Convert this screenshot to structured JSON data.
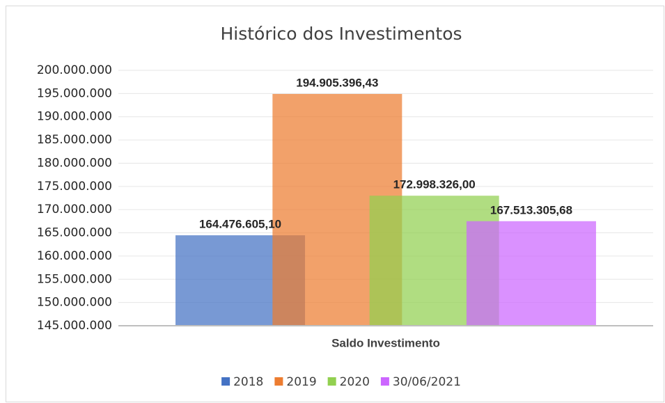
{
  "chart_data": {
    "type": "bar",
    "title": "Histórico dos Investimentos",
    "categories": [
      "Saldo Investimento"
    ],
    "series": [
      {
        "name": "2018",
        "color": "#4472c4",
        "values": [
          164476605.1
        ],
        "value_labels": [
          "164.476.605,10"
        ]
      },
      {
        "name": "2019",
        "color": "#ed7d31",
        "values": [
          194905396.43
        ],
        "value_labels": [
          "194.905.396,43"
        ]
      },
      {
        "name": "2020",
        "color": "#92d050",
        "values": [
          172998326.0
        ],
        "value_labels": [
          "172.998.326,00"
        ]
      },
      {
        "name": "30/06/2021",
        "color": "#cc66ff",
        "values": [
          167513305.68
        ],
        "value_labels": [
          "167.513.305,68"
        ]
      }
    ],
    "ylim": [
      145000000,
      200000000
    ],
    "yticks": [
      {
        "value": 145000000,
        "label": "145.000.000"
      },
      {
        "value": 150000000,
        "label": "150.000.000"
      },
      {
        "value": 155000000,
        "label": "155.000.000"
      },
      {
        "value": 160000000,
        "label": "160.000.000"
      },
      {
        "value": 165000000,
        "label": "165.000.000"
      },
      {
        "value": 170000000,
        "label": "170.000.000"
      },
      {
        "value": 175000000,
        "label": "175.000.000"
      },
      {
        "value": 180000000,
        "label": "180.000.000"
      },
      {
        "value": 185000000,
        "label": "185.000.000"
      },
      {
        "value": 190000000,
        "label": "190.000.000"
      },
      {
        "value": 195000000,
        "label": "195.000.000"
      },
      {
        "value": 200000000,
        "label": "200.000.000"
      }
    ],
    "grid": true
  }
}
